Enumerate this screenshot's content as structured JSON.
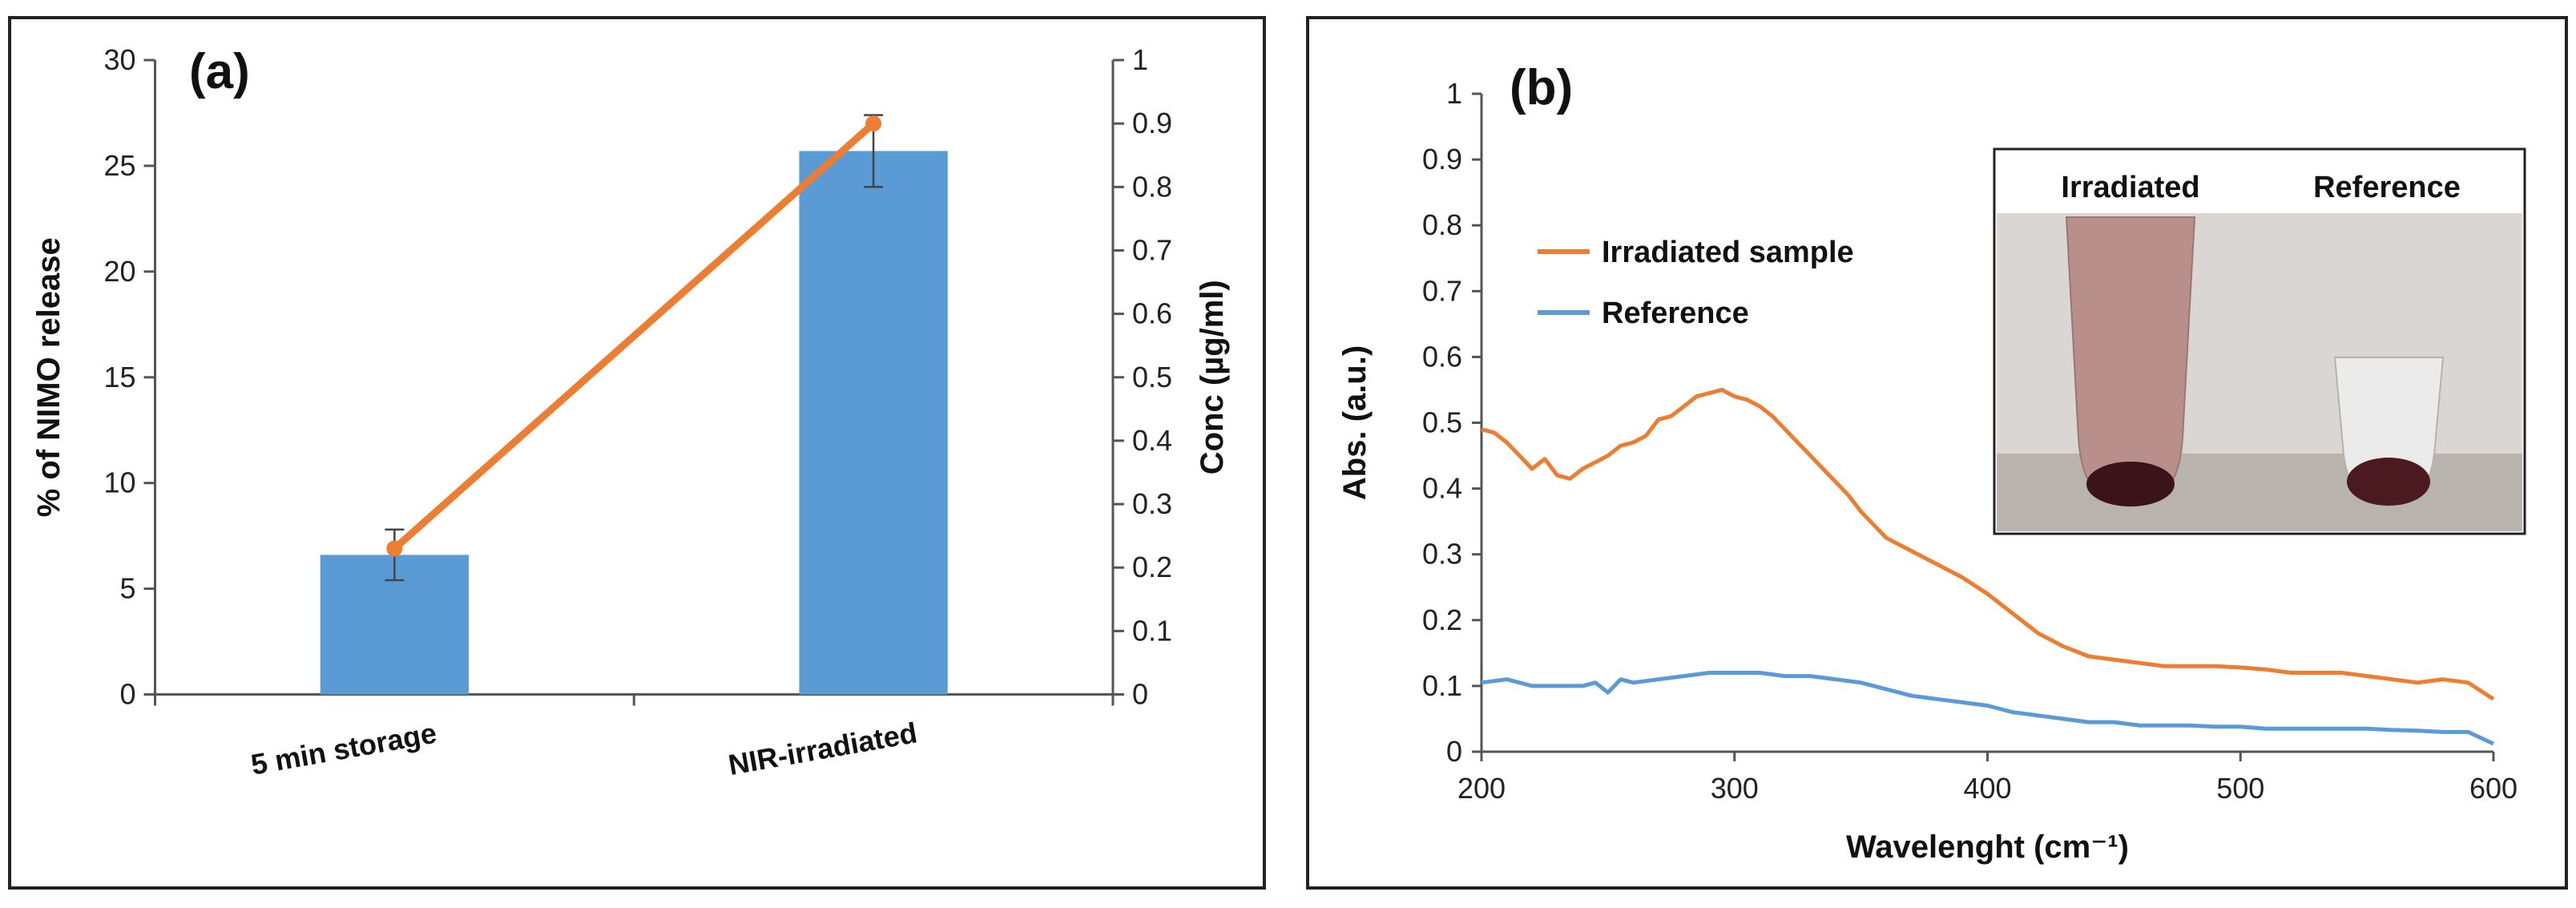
{
  "chart_data": [
    {
      "panel_label": "(a)",
      "type": "bar",
      "categories": [
        "5 min storage",
        "NIR-irradiated"
      ],
      "series": [
        {
          "name": "% of NIMO release",
          "type": "bar",
          "axis": "left",
          "values": [
            6.6,
            25.7
          ],
          "error": [
            1.2,
            1.7
          ],
          "color": "#5b9bd5"
        },
        {
          "name": "Conc (µg/ml)",
          "type": "line",
          "axis": "right",
          "values": [
            0.23,
            0.9
          ],
          "error": [
            0.0,
            0.02
          ],
          "color": "#ed7d31"
        }
      ],
      "ylabel": "% of NIMO release",
      "ylim": [
        0,
        30
      ],
      "yticks": [
        "0",
        "5",
        "10",
        "15",
        "20",
        "25",
        "30"
      ],
      "y2label": "Conc (µg/ml)",
      "y2lim": [
        0,
        1
      ],
      "y2ticks": [
        "0",
        "0.1",
        "0.2",
        "0.3",
        "0.4",
        "0.5",
        "0.6",
        "0.7",
        "0.8",
        "0.9",
        "1"
      ],
      "xlabel": "",
      "grid": false
    },
    {
      "panel_label": "(b)",
      "type": "line",
      "xlabel": "Wavelenght (cm⁻¹)",
      "ylabel": "Abs. (a.u.)",
      "xlim": [
        200,
        600
      ],
      "ylim": [
        0,
        1
      ],
      "xticks": [
        "200",
        "300",
        "400",
        "500",
        "600"
      ],
      "yticks": [
        "0",
        "0.1",
        "0.2",
        "0.3",
        "0.4",
        "0.5",
        "0.6",
        "0.7",
        "0.8",
        "0.9",
        "1"
      ],
      "grid": false,
      "legend": "upper-left",
      "series": [
        {
          "name": "Irradiated sample",
          "color": "#ed7d31",
          "x": [
            200,
            205,
            210,
            215,
            220,
            225,
            230,
            235,
            240,
            245,
            250,
            255,
            260,
            265,
            270,
            275,
            280,
            285,
            290,
            295,
            300,
            305,
            310,
            315,
            320,
            325,
            330,
            335,
            340,
            345,
            350,
            360,
            370,
            380,
            390,
            400,
            410,
            420,
            430,
            440,
            450,
            460,
            470,
            480,
            490,
            500,
            510,
            520,
            530,
            540,
            550,
            560,
            570,
            580,
            590,
            600
          ],
          "y": [
            0.49,
            0.485,
            0.47,
            0.45,
            0.43,
            0.445,
            0.42,
            0.415,
            0.43,
            0.44,
            0.45,
            0.465,
            0.47,
            0.48,
            0.505,
            0.51,
            0.525,
            0.54,
            0.545,
            0.55,
            0.54,
            0.535,
            0.525,
            0.51,
            0.49,
            0.47,
            0.45,
            0.43,
            0.41,
            0.39,
            0.365,
            0.325,
            0.305,
            0.285,
            0.265,
            0.24,
            0.21,
            0.18,
            0.16,
            0.145,
            0.14,
            0.135,
            0.13,
            0.13,
            0.13,
            0.128,
            0.125,
            0.12,
            0.12,
            0.12,
            0.115,
            0.11,
            0.105,
            0.11,
            0.105,
            0.08
          ]
        },
        {
          "name": "Reference",
          "color": "#5b9bd5",
          "x": [
            200,
            210,
            220,
            230,
            240,
            245,
            250,
            255,
            260,
            270,
            280,
            290,
            300,
            310,
            320,
            330,
            340,
            350,
            360,
            370,
            380,
            390,
            400,
            410,
            420,
            430,
            440,
            450,
            460,
            470,
            480,
            490,
            500,
            510,
            520,
            530,
            540,
            550,
            560,
            570,
            580,
            590,
            600
          ],
          "y": [
            0.105,
            0.11,
            0.1,
            0.1,
            0.1,
            0.105,
            0.09,
            0.11,
            0.105,
            0.11,
            0.115,
            0.12,
            0.12,
            0.12,
            0.115,
            0.115,
            0.11,
            0.105,
            0.095,
            0.085,
            0.08,
            0.075,
            0.07,
            0.06,
            0.055,
            0.05,
            0.045,
            0.045,
            0.04,
            0.04,
            0.04,
            0.038,
            0.038,
            0.035,
            0.035,
            0.035,
            0.035,
            0.035,
            0.033,
            0.032,
            0.03,
            0.03,
            0.012
          ]
        }
      ],
      "inset": {
        "labels": [
          "Irradiated",
          "Reference"
        ]
      }
    }
  ]
}
